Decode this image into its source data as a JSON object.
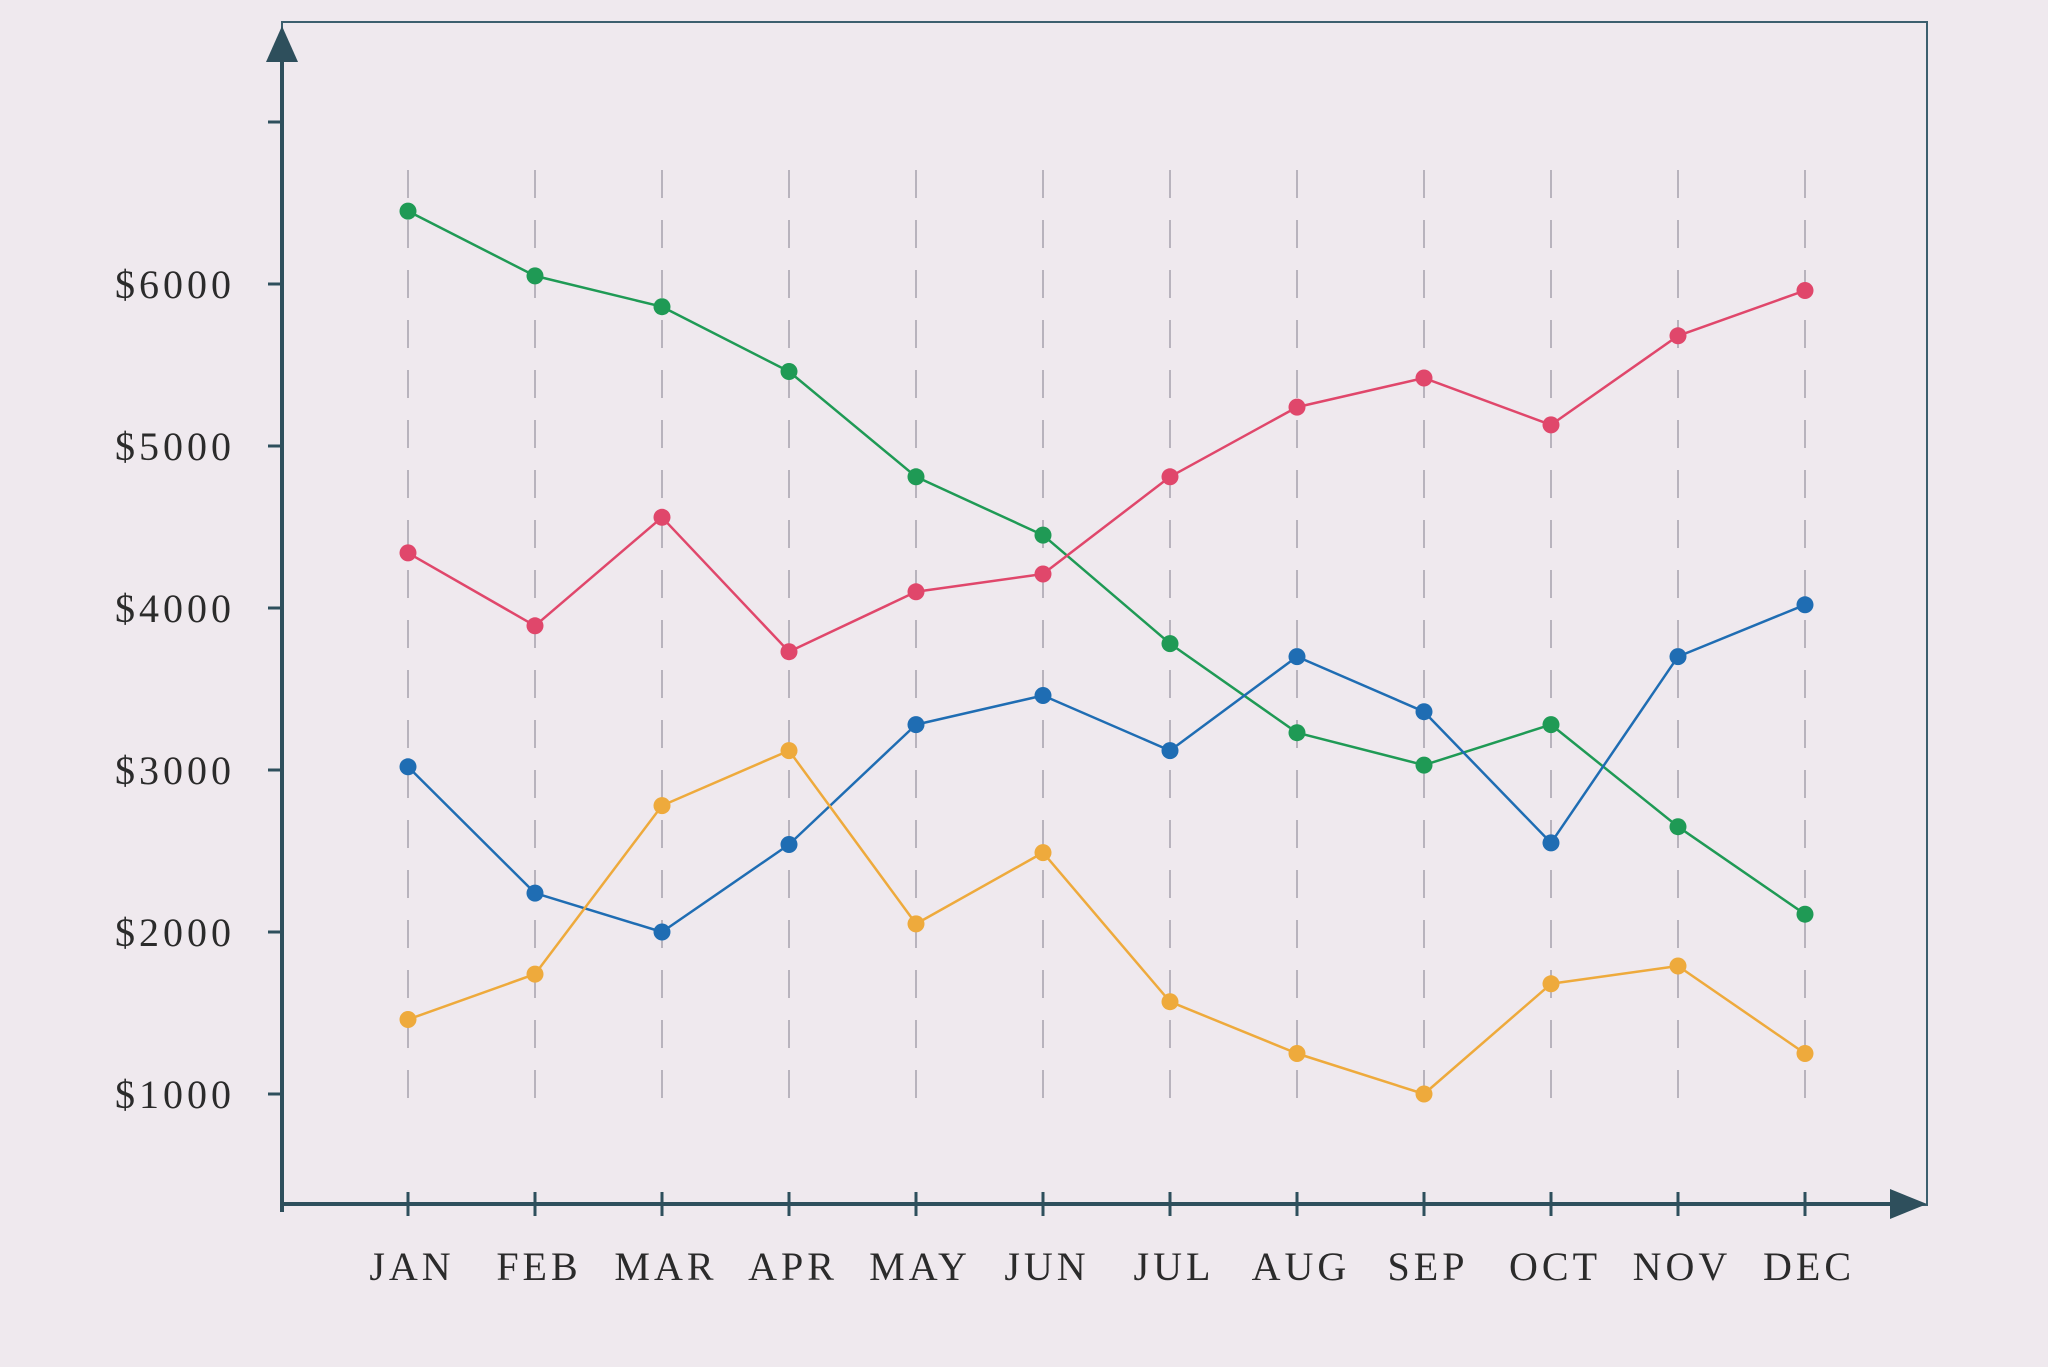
{
  "chart_data": {
    "type": "line",
    "title": "",
    "xlabel": "",
    "ylabel": "",
    "categories": [
      "JAN",
      "FEB",
      "MAR",
      "APR",
      "MAY",
      "JUN",
      "JUL",
      "AUG",
      "SEP",
      "OCT",
      "NOV",
      "DEC"
    ],
    "ylim": [
      300,
      7600
    ],
    "yticks": [
      1000,
      2000,
      3000,
      4000,
      5000,
      6000
    ],
    "ytick_labels": [
      "$1000",
      "$2000",
      "$3000",
      "$4000",
      "$5000",
      "$6000"
    ],
    "grid": "vertical dashed",
    "legend": "none",
    "series": [
      {
        "color": "#1f9a55",
        "values": [
          6450,
          6050,
          5860,
          5460,
          4810,
          4450,
          3780,
          3230,
          3030,
          3280,
          2650,
          2110
        ]
      },
      {
        "color": "#e0476b",
        "values": [
          4340,
          3890,
          4560,
          3730,
          4100,
          4210,
          4810,
          5240,
          5420,
          5130,
          5680,
          5960
        ]
      },
      {
        "color": "#1f6db3",
        "values": [
          3020,
          2240,
          2000,
          2540,
          3280,
          3460,
          3120,
          3700,
          3360,
          2550,
          3700,
          4020
        ]
      },
      {
        "color": "#eeaa3c",
        "values": [
          1460,
          1740,
          2780,
          3120,
          2050,
          2490,
          1570,
          1250,
          1000,
          1680,
          1790,
          1250
        ]
      }
    ]
  },
  "colors": {
    "axis": "#2e4f5c",
    "frame": "#3c5f6e",
    "grid": "#b8b3bd",
    "background": "#efe9ee"
  }
}
